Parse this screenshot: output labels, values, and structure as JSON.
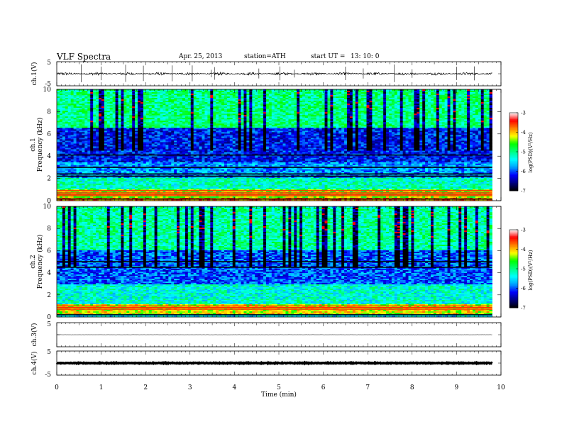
{
  "header": {
    "title": "VLF  Spectra",
    "date": "Apr. 25, 2013",
    "station": "station=ATH",
    "start_label": "start  UT  =",
    "start_time": "13: 10: 0"
  },
  "chart_data": [
    {
      "id": "ch1-waveform",
      "type": "line",
      "ylabel": "ch.1(V)",
      "ylim": [
        -5,
        5
      ],
      "yticks": [
        "5",
        "-5"
      ],
      "xlim": [
        0,
        10
      ],
      "baseline": 0,
      "noise_amplitude": 0.35,
      "spike_times": [
        0.55,
        1.0,
        1.55,
        1.95,
        2.6,
        3.05,
        3.48,
        3.55,
        4.55,
        5.02,
        5.35,
        6.5,
        6.9,
        7.6,
        8.0,
        9.0,
        9.4
      ]
    },
    {
      "id": "ch1-spectrogram",
      "type": "heatmap",
      "ylabel": "Frequency  (kHz)",
      "channel_label": "ch.1",
      "ylim": [
        0,
        10
      ],
      "yticks": [
        "0",
        "2",
        "4",
        "6",
        "8",
        "10"
      ],
      "xlim": [
        0,
        10
      ],
      "data_end_min": 9.8,
      "colorbar": {
        "label": "log(PSD)(V²/Hz)",
        "range": [
          -7,
          -3
        ],
        "ticks": [
          "-7",
          "-6",
          "-5",
          "-4",
          "-3"
        ],
        "colors": [
          "#000000",
          "#000080",
          "#0000ff",
          "#00a0ff",
          "#00ffff",
          "#00ff80",
          "#00ff00",
          "#ffff00",
          "#ff8000",
          "#ff0000",
          "#ffffff"
        ]
      },
      "band_levels": [
        {
          "fmin": 0,
          "fmax": 0.3,
          "level": -3.8
        },
        {
          "fmin": 0.3,
          "fmax": 1.0,
          "level": -4.4
        },
        {
          "fmin": 1.0,
          "fmax": 2.0,
          "level": -5.2
        },
        {
          "fmin": 2.0,
          "fmax": 3.5,
          "level": -5.8
        },
        {
          "fmin": 3.5,
          "fmax": 6.5,
          "level": -6.2
        },
        {
          "fmin": 6.5,
          "fmax": 10,
          "level": -5.0
        }
      ],
      "dark_lines_khz": [
        0.15,
        2.2,
        2.4,
        3.0,
        4.1
      ],
      "bright_lines_khz": [
        0.45,
        0.55,
        0.7,
        0.9
      ]
    },
    {
      "id": "ch2-spectrogram",
      "type": "heatmap",
      "ylabel": "Frequency  (kHz)",
      "channel_label": "ch.2",
      "ylim": [
        0,
        10
      ],
      "yticks": [
        "0",
        "2",
        "4",
        "6",
        "8",
        "10"
      ],
      "xlim": [
        0,
        10
      ],
      "data_end_min": 9.8,
      "colorbar": {
        "label": "log(PSD)(V²/Hz)",
        "range": [
          -7,
          -3
        ],
        "ticks": [
          "-7",
          "-6",
          "-5",
          "-4",
          "-3"
        ],
        "colors": [
          "#000000",
          "#000080",
          "#0000ff",
          "#00a0ff",
          "#00ffff",
          "#00ff80",
          "#00ff00",
          "#ffff00",
          "#ff8000",
          "#ff0000",
          "#ffffff"
        ]
      },
      "band_levels": [
        {
          "fmin": 0,
          "fmax": 0.3,
          "level": -5.5
        },
        {
          "fmin": 0.3,
          "fmax": 1.2,
          "level": -4.2
        },
        {
          "fmin": 1.2,
          "fmax": 3.0,
          "level": -5.3
        },
        {
          "fmin": 3.0,
          "fmax": 6.0,
          "level": -6.0
        },
        {
          "fmin": 6.0,
          "fmax": 10,
          "level": -5.1
        }
      ],
      "dark_lines_khz": [
        0.2,
        4.5,
        5.0
      ],
      "bright_lines_khz": [
        0.7,
        0.85,
        1.0
      ]
    },
    {
      "id": "ch3-waveform",
      "type": "line",
      "ylabel": "ch.3(V)",
      "ylim": [
        -5,
        5
      ],
      "yticks": [
        "5",
        "-5"
      ],
      "xlim": [
        0,
        10
      ],
      "baseline": 0,
      "noise_amplitude": 0.03,
      "spike_times": []
    },
    {
      "id": "ch4-waveform",
      "type": "line",
      "ylabel": "ch.4(V)",
      "ylim": [
        -5,
        5
      ],
      "yticks": [
        "5",
        "-5"
      ],
      "xlim": [
        0,
        10
      ],
      "baseline": 0,
      "noise_amplitude": 0.15,
      "spike_times": []
    }
  ],
  "xaxis": {
    "label": "Time  (min)",
    "ticks": [
      "0",
      "1",
      "2",
      "3",
      "4",
      "5",
      "6",
      "7",
      "8",
      "9",
      "10"
    ]
  }
}
